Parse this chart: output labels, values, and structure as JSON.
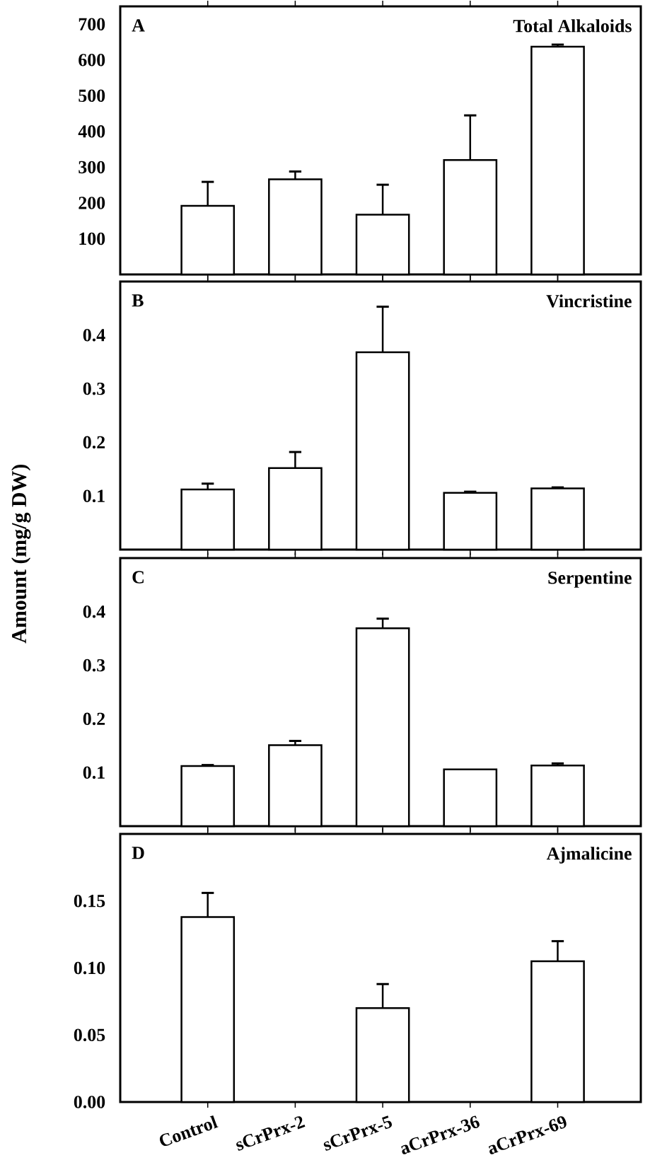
{
  "chart_data": [
    {
      "type": "bar",
      "title": "Total Alkaloids",
      "annotations": [
        "A"
      ],
      "categories": [
        null,
        null,
        null,
        null,
        null
      ],
      "tick_labels": "y",
      "color": "#ffffff",
      "values": [
        192,
        266,
        167,
        320,
        637
      ],
      "errors": [
        [
          192,
          259
        ],
        [
          266,
          288
        ],
        [
          167,
          251
        ],
        [
          320,
          445
        ],
        [
          637,
          643
        ]
      ],
      "ylim": [
        0,
        750
      ],
      "yticks": [
        100,
        200,
        300,
        400,
        500,
        600,
        700
      ]
    },
    {
      "type": "bar",
      "title": "Vincristine",
      "annotations": [
        "B"
      ],
      "ylabel": "Amount (mg/g DW)",
      "categories": [
        null,
        null,
        null,
        null,
        null
      ],
      "tick_labels": "y",
      "color": "#ffffff",
      "values": [
        0.112,
        0.152,
        0.368,
        0.106,
        0.114
      ],
      "errors": [
        [
          0.112,
          0.123
        ],
        [
          0.152,
          0.182
        ],
        [
          0.368,
          0.453
        ],
        [
          0.106,
          0.108
        ],
        [
          0.114,
          0.116
        ]
      ],
      "ylim": [
        0,
        0.5
      ],
      "yticks": [
        0.1,
        0.2,
        0.3,
        0.4
      ]
    },
    {
      "type": "bar",
      "title": "Serpentine",
      "annotations": [
        "C"
      ],
      "categories": [
        null,
        null,
        null,
        null,
        null
      ],
      "tick_labels": "y",
      "color": "#ffffff",
      "values": [
        0.112,
        0.151,
        0.369,
        0.106,
        0.113
      ],
      "errors": [
        [
          0.112,
          0.114
        ],
        [
          0.151,
          0.159
        ],
        [
          0.369,
          0.387
        ],
        null,
        [
          0.113,
          0.117
        ]
      ],
      "ylim": [
        0,
        0.5
      ],
      "yticks": [
        0.1,
        0.2,
        0.3,
        0.4
      ]
    },
    {
      "type": "bar",
      "title": "Ajmalicine",
      "annotations": [
        "D"
      ],
      "categories": [
        "Control",
        "sCrPrx-2",
        "sCrPrx-5",
        "aCrPrx-36",
        "aCrPrx-69"
      ],
      "color": "#ffffff",
      "values": [
        0.138,
        null,
        0.07,
        null,
        0.105
      ],
      "errors": [
        [
          0.138,
          0.156
        ],
        null,
        [
          0.07,
          0.088
        ],
        null,
        [
          0.105,
          0.12
        ]
      ],
      "ylim": [
        0,
        0.2
      ],
      "yticks": [
        {
          "value": 0,
          "label": "0.00"
        },
        {
          "value": 0.05,
          "label": "0.05"
        },
        {
          "value": 0.1,
          "label": "0.10"
        },
        {
          "value": 0.15,
          "label": "0.15"
        }
      ]
    }
  ]
}
